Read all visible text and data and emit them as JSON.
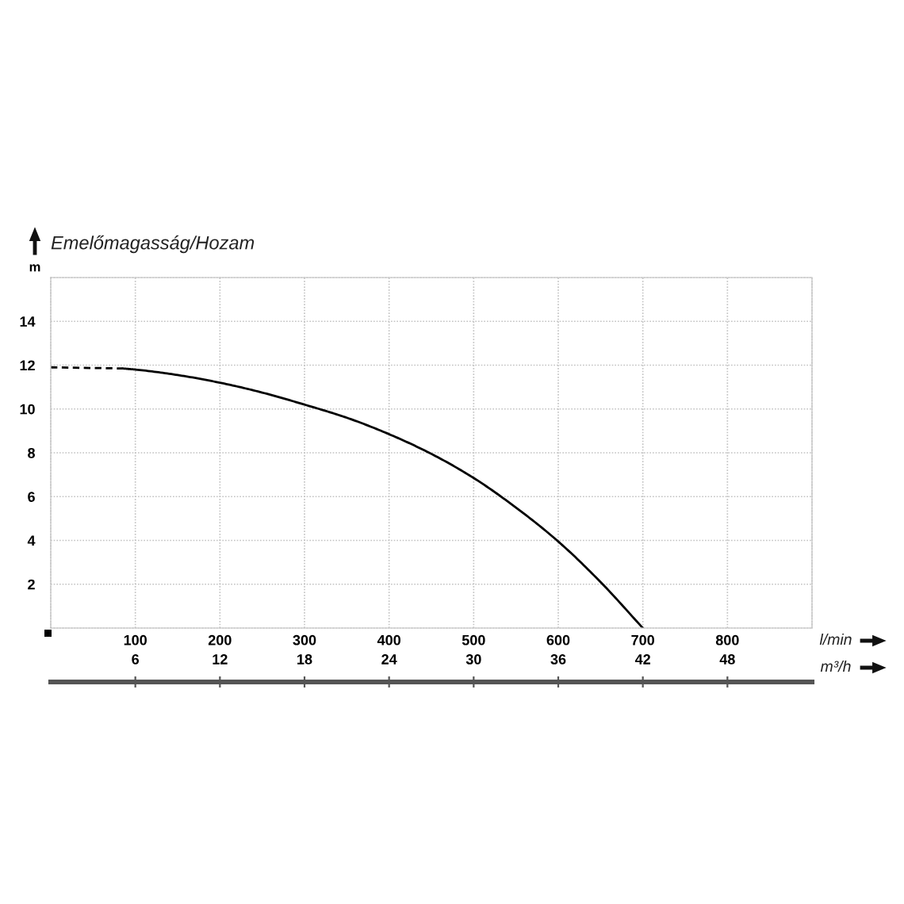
{
  "chart_data": {
    "type": "line",
    "title": "Emelőmagasság/Hozam",
    "ylabel": "m",
    "xlabel": "l/min",
    "x2label": "m³/h",
    "xlim": [
      0,
      900
    ],
    "xticks": [
      100,
      200,
      300,
      400,
      500,
      600,
      700,
      800
    ],
    "ylim": [
      0,
      16
    ],
    "yticks": [
      2,
      4,
      6,
      8,
      10,
      12,
      14
    ],
    "x2lim": [
      0,
      54
    ],
    "x2ticks": [
      6,
      12,
      18,
      24,
      30,
      36,
      42,
      48
    ],
    "grid": true,
    "series": [
      {
        "x": [
          0,
          85
        ],
        "values": [
          11.9,
          11.85
        ],
        "color": "#000000",
        "line_style": "dashed"
      },
      {
        "x": [
          85,
          100,
          150,
          200,
          250,
          300,
          350,
          400,
          450,
          500,
          550,
          600,
          650,
          700
        ],
        "values": [
          11.85,
          11.8,
          11.55,
          11.2,
          10.75,
          10.2,
          9.6,
          8.85,
          7.95,
          6.85,
          5.5,
          3.95,
          2.1,
          0
        ],
        "color": "#000000",
        "line_style": "solid"
      }
    ]
  }
}
